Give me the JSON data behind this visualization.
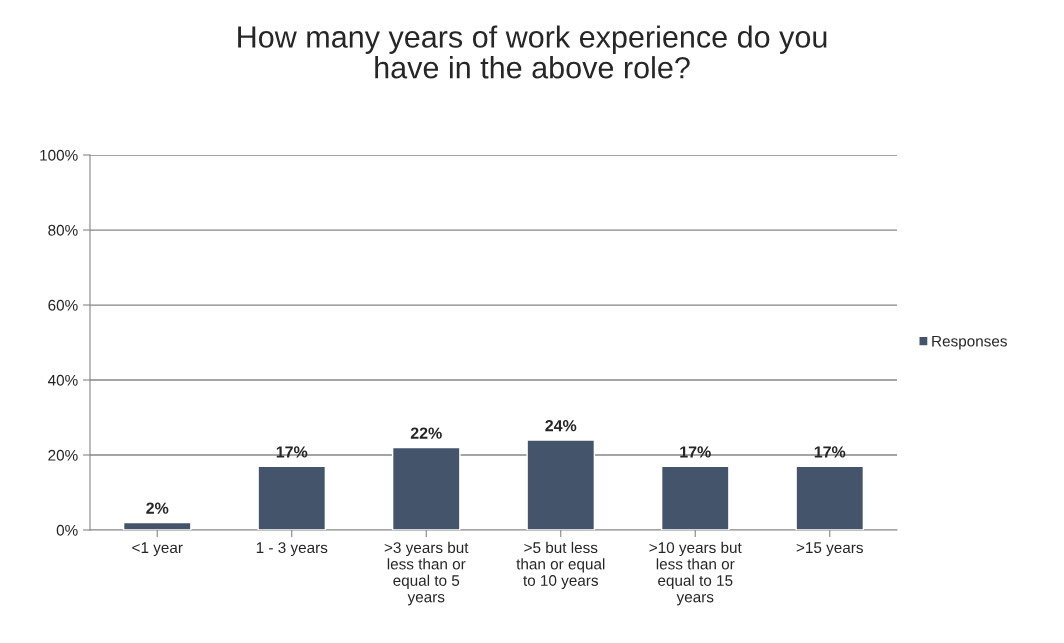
{
  "chart_data": {
    "type": "bar",
    "title": "How many years of work experience do you have in the above role?",
    "categories": [
      "<1 year",
      "1 - 3 years",
      ">3 years but less than or equal to 5 years",
      ">5 but less than or equal to 10 years",
      ">10 years but less than or equal to 15 years",
      ">15 years"
    ],
    "series": [
      {
        "name": "Responses",
        "color": "#44546a",
        "values": [
          2,
          17,
          22,
          24,
          17,
          17
        ],
        "value_labels": [
          "2%",
          "17%",
          "22%",
          "24%",
          "17%",
          "17%"
        ]
      }
    ],
    "ylim": [
      0,
      100
    ],
    "yticks": [
      {
        "value": 0,
        "label": "0%"
      },
      {
        "value": 20,
        "label": "20%"
      },
      {
        "value": 40,
        "label": "40%"
      },
      {
        "value": 60,
        "label": "60%"
      },
      {
        "value": 80,
        "label": "80%"
      },
      {
        "value": 100,
        "label": "100%"
      }
    ],
    "grid": "y",
    "legend": "right"
  }
}
